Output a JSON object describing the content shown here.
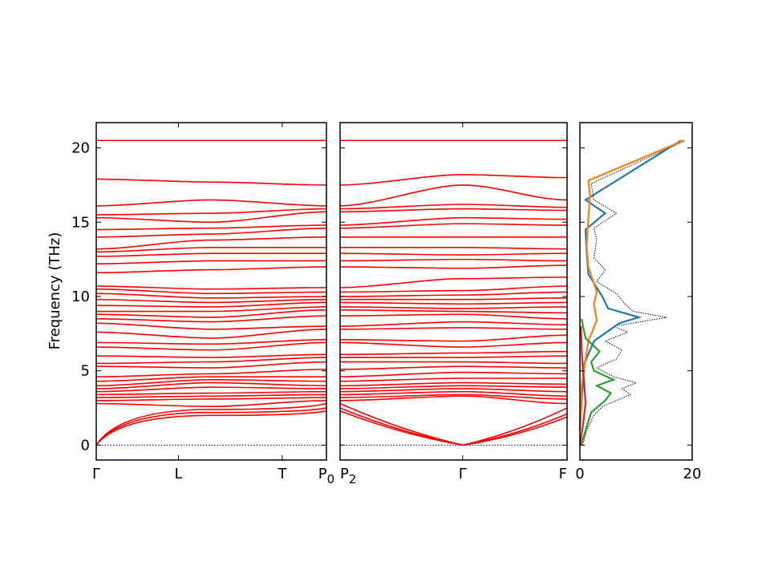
{
  "chart_data": [
    {
      "type": "line",
      "panel": "band-structure-1",
      "ylabel": "Frequency (THz)",
      "ylim": [
        -1.0,
        21.7
      ],
      "yticks": [
        0,
        5,
        10,
        15,
        20
      ],
      "xticks": [
        {
          "label": "Γ",
          "pos": 0.0
        },
        {
          "label": "L",
          "pos": 0.357
        },
        {
          "label": "T",
          "pos": 0.808
        },
        {
          "label": "P",
          "pos": 1.0,
          "sub": "0"
        }
      ],
      "band_color": "#ff0000",
      "zero_line_color": "#0000ff",
      "n_bands_shown": 40,
      "band_start_values": [
        0,
        0,
        0,
        2.8,
        3.0,
        3.2,
        3.4,
        3.6,
        3.8,
        4.0,
        4.3,
        4.6,
        5.3,
        5.5,
        6.0,
        6.6,
        6.9,
        7.6,
        8.2,
        8.5,
        8.8,
        9.0,
        9.4,
        9.8,
        10.2,
        10.5,
        10.7,
        11.6,
        12.2,
        12.7,
        13.0,
        13.2,
        14.0,
        14.5,
        15.3,
        15.5,
        16.1,
        17.9,
        20.5,
        20.5
      ],
      "band_mid_values": [
        2.0,
        2.2,
        2.4,
        2.6,
        3.1,
        3.3,
        3.5,
        3.9,
        4.2,
        4.4,
        4.6,
        4.8,
        5.2,
        5.6,
        5.9,
        6.4,
        6.8,
        7.2,
        7.8,
        8.3,
        8.6,
        9.0,
        9.3,
        9.6,
        9.9,
        10.2,
        10.5,
        11.8,
        12.4,
        12.9,
        13.3,
        13.8,
        14.2,
        14.6,
        15.0,
        15.6,
        16.5,
        17.7,
        20.5,
        20.5
      ],
      "band_end_values": [
        2.3,
        2.5,
        2.8,
        3.0,
        3.2,
        3.4,
        3.6,
        3.8,
        4.0,
        4.3,
        4.6,
        5.1,
        5.6,
        5.9,
        6.1,
        6.9,
        7.1,
        7.8,
        8.0,
        8.7,
        9.1,
        9.3,
        9.6,
        9.8,
        10.0,
        10.3,
        10.6,
        12.0,
        12.4,
        12.9,
        13.3,
        14.0,
        14.6,
        14.8,
        15.7,
        15.9,
        16.1,
        17.5,
        20.5,
        20.5
      ]
    },
    {
      "type": "line",
      "panel": "band-structure-2",
      "ylim": [
        -1.0,
        21.7
      ],
      "xticks": [
        {
          "label": "P",
          "pos": 0.0,
          "sub": "2"
        },
        {
          "label": "Γ",
          "pos": 0.54
        },
        {
          "label": "F",
          "pos": 1.0
        }
      ],
      "band_color": "#ff0000",
      "zero_line_color": "#0000ff",
      "n_bands_shown": 40,
      "band_start_values": [
        2.3,
        2.5,
        2.8,
        3.0,
        3.2,
        3.4,
        3.6,
        3.8,
        4.0,
        4.3,
        4.6,
        5.1,
        5.6,
        5.9,
        6.1,
        6.9,
        7.1,
        7.8,
        8.0,
        8.7,
        9.1,
        9.3,
        9.6,
        9.8,
        10.0,
        10.3,
        10.6,
        12.0,
        12.4,
        12.9,
        13.3,
        14.0,
        14.6,
        14.8,
        15.7,
        15.9,
        16.1,
        17.5,
        20.5,
        20.5
      ],
      "band_gamma_values": [
        0,
        0,
        0,
        3.3,
        3.4,
        3.6,
        3.8,
        4.0,
        4.2,
        4.5,
        4.9,
        5.3,
        5.6,
        5.9,
        6.2,
        6.6,
        7.0,
        7.9,
        8.3,
        8.8,
        9.0,
        9.2,
        9.5,
        9.8,
        10.1,
        10.4,
        11.2,
        11.9,
        12.5,
        12.8,
        13.3,
        14.0,
        14.9,
        15.3,
        15.9,
        16.2,
        17.5,
        18.2,
        20.5,
        20.5
      ],
      "band_end_values": [
        1.9,
        2.1,
        2.5,
        2.8,
        3.1,
        3.3,
        3.6,
        3.9,
        4.1,
        4.5,
        4.8,
        5.2,
        5.5,
        6.0,
        6.3,
        6.9,
        7.4,
        7.8,
        8.1,
        8.5,
        8.9,
        9.3,
        9.6,
        9.9,
        10.3,
        10.7,
        11.3,
        12.1,
        12.4,
        12.9,
        13.2,
        14.0,
        14.8,
        15.2,
        15.8,
        16.0,
        16.5,
        18.0,
        20.5,
        20.5
      ]
    },
    {
      "type": "line",
      "panel": "density-of-states",
      "orientation": "horizontal",
      "xlim": [
        0,
        20
      ],
      "xticks": [
        0,
        20
      ],
      "ylim": [
        -1.0,
        21.7
      ],
      "series": [
        {
          "color": "#000000",
          "style": "dotted",
          "values": [
            [
              0.5,
              0
            ],
            [
              1.2,
              1.0
            ],
            [
              2.5,
              2.0
            ],
            [
              4.0,
              2.6
            ],
            [
              6.5,
              3.0
            ],
            [
              9.0,
              3.4
            ],
            [
              7.5,
              3.8
            ],
            [
              10.0,
              4.2
            ],
            [
              6.0,
              4.6
            ],
            [
              3.0,
              5.2
            ],
            [
              6.5,
              5.8
            ],
            [
              7.5,
              6.4
            ],
            [
              4.5,
              7.0
            ],
            [
              8.5,
              7.6
            ],
            [
              6.0,
              8.0
            ],
            [
              15.5,
              8.6
            ],
            [
              9.5,
              9.0
            ],
            [
              8.0,
              9.5
            ],
            [
              6.5,
              10.2
            ],
            [
              3.0,
              11.0
            ],
            [
              4.5,
              11.8
            ],
            [
              2.5,
              12.6
            ],
            [
              3.0,
              13.8
            ],
            [
              2.5,
              14.6
            ],
            [
              6.5,
              15.6
            ],
            [
              2.5,
              16.5
            ],
            [
              2.0,
              17.6
            ],
            [
              18.8,
              20.5
            ]
          ]
        },
        {
          "color": "#1f77b4",
          "values": [
            [
              0,
              1.0
            ],
            [
              0.3,
              3.0
            ],
            [
              0.8,
              5.5
            ],
            [
              2.5,
              7.0
            ],
            [
              7.0,
              8.2
            ],
            [
              10.5,
              8.6
            ],
            [
              5.0,
              9.2
            ],
            [
              4.0,
              10.0
            ],
            [
              1.5,
              11.5
            ],
            [
              1.2,
              13.0
            ],
            [
              1.0,
              14.5
            ],
            [
              4.5,
              15.6
            ],
            [
              1.0,
              16.5
            ],
            [
              18.0,
              20.5
            ]
          ]
        },
        {
          "color": "#ff7f0e",
          "values": [
            [
              0,
              1.0
            ],
            [
              0.3,
              4.0
            ],
            [
              1.5,
              7.0
            ],
            [
              3.0,
              8.4
            ],
            [
              2.5,
              9.5
            ],
            [
              3.0,
              10.3
            ],
            [
              1.5,
              12.0
            ],
            [
              1.2,
              13.4
            ],
            [
              1.5,
              15.2
            ],
            [
              1.8,
              16.8
            ],
            [
              1.5,
              17.8
            ],
            [
              18.5,
              20.5
            ]
          ]
        },
        {
          "color": "#2ca02c",
          "values": [
            [
              0.2,
              0
            ],
            [
              2.0,
              2.2
            ],
            [
              4.5,
              3.0
            ],
            [
              5.5,
              3.5
            ],
            [
              3.0,
              4.0
            ],
            [
              6.0,
              4.4
            ],
            [
              2.5,
              5.0
            ],
            [
              2.0,
              5.6
            ],
            [
              3.5,
              6.3
            ],
            [
              1.0,
              7.2
            ],
            [
              0.3,
              8.5
            ]
          ]
        },
        {
          "color": "#d62728",
          "values": [
            [
              0,
              0
            ],
            [
              0.6,
              1.5
            ],
            [
              1.0,
              2.8
            ],
            [
              0.8,
              4.0
            ],
            [
              0.5,
              5.2
            ],
            [
              0.3,
              6.5
            ],
            [
              0.2,
              8.0
            ]
          ]
        }
      ]
    }
  ]
}
